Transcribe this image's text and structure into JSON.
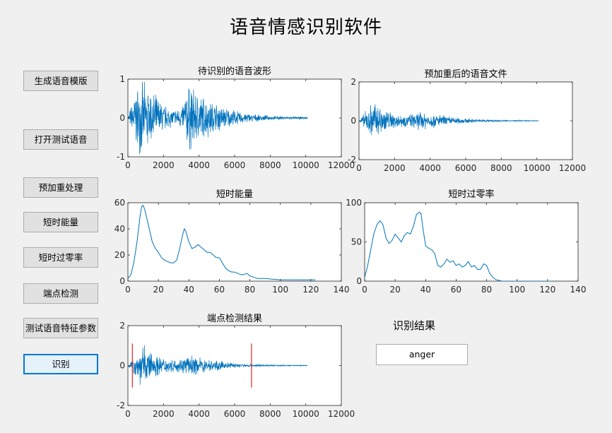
{
  "window": {
    "title": "语音情感识别软件"
  },
  "buttons": [
    {
      "id": "gen",
      "label": "生成语音模版"
    },
    {
      "id": "open",
      "label": "打开测试语音"
    },
    {
      "id": "preemph",
      "label": "预加重处理"
    },
    {
      "id": "energy",
      "label": "短时能量"
    },
    {
      "id": "zcr",
      "label": "短时过零率"
    },
    {
      "id": "endpoint",
      "label": "端点检测"
    },
    {
      "id": "features",
      "label": "测试语音特征参数"
    },
    {
      "id": "recognize",
      "label": "识别"
    }
  ],
  "result": {
    "label": "识别结果",
    "value": "anger"
  },
  "colors": {
    "signal": "#0072bd",
    "marker": "#e02020",
    "axes_bg": "#ffffff"
  },
  "chart_data": [
    {
      "type": "line",
      "title": "待识别的语音波形",
      "xlim": [
        0,
        12000
      ],
      "ylim": [
        -1,
        1
      ],
      "xticks": [
        "0",
        "2000",
        "4000",
        "6000",
        "8000",
        "10000",
        "12000"
      ],
      "yticks": [
        "-1",
        "0",
        "1"
      ],
      "signal_length": 10100,
      "envelope": [
        [
          0,
          0.02
        ],
        [
          300,
          0.6
        ],
        [
          600,
          1.0
        ],
        [
          1000,
          0.95
        ],
        [
          1500,
          0.7
        ],
        [
          2000,
          0.4
        ],
        [
          2500,
          0.25
        ],
        [
          3000,
          0.3
        ],
        [
          3400,
          1.0
        ],
        [
          3800,
          0.8
        ],
        [
          4500,
          0.55
        ],
        [
          5500,
          0.3
        ],
        [
          6500,
          0.15
        ],
        [
          7500,
          0.08
        ],
        [
          8500,
          0.05
        ],
        [
          10100,
          0.03
        ]
      ]
    },
    {
      "type": "line",
      "title": "预加重后的语音文件",
      "xlim": [
        0,
        12000
      ],
      "ylim": [
        -2,
        2
      ],
      "xticks": [
        "0",
        "2000",
        "4000",
        "6000",
        "8000",
        "10000",
        "12000"
      ],
      "yticks": [
        "-2",
        "0",
        "2"
      ],
      "signal_length": 10100,
      "envelope": [
        [
          0,
          0.02
        ],
        [
          400,
          0.6
        ],
        [
          800,
          1.2
        ],
        [
          1200,
          0.9
        ],
        [
          1800,
          0.5
        ],
        [
          2500,
          0.35
        ],
        [
          3000,
          0.4
        ],
        [
          3500,
          0.55
        ],
        [
          4500,
          0.35
        ],
        [
          5500,
          0.2
        ],
        [
          6500,
          0.1
        ],
        [
          8000,
          0.04
        ],
        [
          10100,
          0.02
        ]
      ]
    },
    {
      "type": "line",
      "title": "短时能量",
      "xlim": [
        0,
        140
      ],
      "ylim": [
        0,
        60
      ],
      "xticks": [
        "0",
        "20",
        "40",
        "60",
        "80",
        "100",
        "120",
        "140"
      ],
      "yticks": [
        "0",
        "20",
        "40",
        "60"
      ],
      "x": [
        0,
        2,
        4,
        6,
        8,
        9,
        10,
        11,
        12,
        14,
        16,
        18,
        20,
        22,
        24,
        26,
        28,
        30,
        32,
        34,
        36,
        37,
        38,
        40,
        42,
        44,
        46,
        48,
        50,
        52,
        54,
        56,
        58,
        60,
        62,
        64,
        66,
        68,
        70,
        72,
        74,
        76,
        78,
        80,
        85,
        90,
        95,
        100,
        105,
        110,
        115,
        120,
        123
      ],
      "y": [
        2,
        5,
        15,
        30,
        50,
        57,
        58,
        55,
        50,
        40,
        30,
        25,
        22,
        18,
        16,
        15,
        14,
        14,
        16,
        25,
        36,
        40,
        38,
        30,
        25,
        26,
        28,
        26,
        24,
        22,
        22,
        20,
        18,
        18,
        14,
        10,
        8,
        7,
        7,
        6,
        5,
        5,
        6,
        4,
        2,
        2,
        1.5,
        1,
        1,
        1,
        1,
        1,
        1
      ]
    },
    {
      "type": "line",
      "title": "短时过零率",
      "xlim": [
        0,
        140
      ],
      "ylim": [
        0,
        100
      ],
      "xticks": [
        "0",
        "20",
        "40",
        "60",
        "80",
        "100",
        "120",
        "140"
      ],
      "yticks": [
        "0",
        "50",
        "100"
      ],
      "x": [
        0,
        2,
        4,
        6,
        8,
        10,
        12,
        14,
        16,
        18,
        20,
        22,
        24,
        26,
        28,
        30,
        32,
        34,
        36,
        37,
        38,
        40,
        42,
        44,
        46,
        48,
        50,
        52,
        54,
        56,
        58,
        60,
        62,
        64,
        66,
        68,
        70,
        72,
        74,
        76,
        78,
        80,
        82,
        84,
        86,
        88,
        90,
        100,
        110,
        120,
        123
      ],
      "y": [
        5,
        20,
        40,
        60,
        72,
        77,
        72,
        55,
        48,
        52,
        60,
        55,
        50,
        58,
        62,
        60,
        70,
        85,
        88,
        86,
        70,
        45,
        42,
        40,
        35,
        20,
        18,
        22,
        28,
        24,
        26,
        20,
        22,
        18,
        20,
        25,
        18,
        20,
        15,
        15,
        22,
        20,
        10,
        5,
        2,
        1,
        0,
        0,
        0,
        0,
        0
      ]
    },
    {
      "type": "line",
      "title": "端点检测结果",
      "xlim": [
        0,
        12000
      ],
      "ylim": [
        -2,
        2
      ],
      "xticks": [
        "0",
        "2000",
        "4000",
        "6000",
        "8000",
        "10000",
        "12000"
      ],
      "yticks": [
        "-2",
        "0",
        "2"
      ],
      "signal_length": 10100,
      "markers_x": [
        250,
        6950
      ],
      "envelope": [
        [
          0,
          0.02
        ],
        [
          400,
          0.6
        ],
        [
          800,
          1.2
        ],
        [
          1200,
          0.9
        ],
        [
          1800,
          0.5
        ],
        [
          2500,
          0.35
        ],
        [
          3000,
          0.4
        ],
        [
          3500,
          0.55
        ],
        [
          4500,
          0.35
        ],
        [
          5500,
          0.2
        ],
        [
          6500,
          0.1
        ],
        [
          8000,
          0.04
        ],
        [
          10100,
          0.02
        ]
      ]
    }
  ]
}
